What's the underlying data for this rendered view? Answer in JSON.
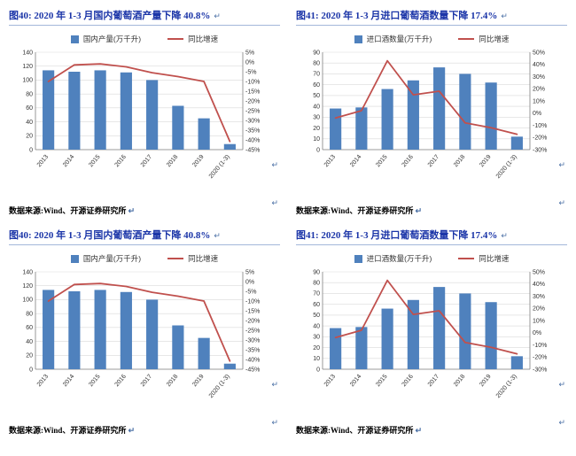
{
  "colors": {
    "bar": "#4F81BD",
    "line": "#C0504D",
    "title": "#1B35A8",
    "grid": "#D9D9D9",
    "axis": "#808080",
    "rule": "#A3B7DA",
    "mark": "#4A6FA5"
  },
  "page": {
    "mark": "↵",
    "source_note": "数据来源:Wind、开源证券研究所"
  },
  "chart_data": [
    {
      "type": "bar",
      "subtype": "bar+line-dual-axis",
      "title": "图40: 2020 年 1-3 月国内葡萄酒产量下降 40.8%",
      "categories": [
        "2013",
        "2014",
        "2015",
        "2016",
        "2017",
        "2018",
        "2019",
        "2020 (1-3)"
      ],
      "series": [
        {
          "name": "国内产量(万千升)",
          "type": "bar",
          "axis": "left",
          "values": [
            114,
            112,
            114,
            111,
            100,
            63,
            45,
            8
          ]
        },
        {
          "name": "同比增速",
          "type": "line",
          "axis": "right",
          "values": [
            -10,
            -1.5,
            -1,
            -2.5,
            -5.5,
            -7.5,
            -10,
            -40.8
          ]
        }
      ],
      "left_axis": {
        "min": 0,
        "max": 140,
        "ticks": [
          "140",
          "120",
          "100",
          "80",
          "60",
          "40",
          "20",
          "0"
        ]
      },
      "right_axis": {
        "min": -45,
        "max": 5,
        "ticks": [
          "5%",
          "0%",
          "-5%",
          "-10%",
          "-15%",
          "-20%",
          "-25%",
          "-30%",
          "-35%",
          "-40%",
          "-45%"
        ]
      },
      "legend_position": "top",
      "grid": true
    },
    {
      "type": "bar",
      "subtype": "bar+line-dual-axis",
      "title": "图41: 2020 年 1-3 月进口葡萄酒数量下降 17.4%",
      "categories": [
        "2013",
        "2014",
        "2015",
        "2016",
        "2017",
        "2018",
        "2019",
        "2020 (1-3)"
      ],
      "series": [
        {
          "name": "进口酒数量(万千升)",
          "type": "bar",
          "axis": "left",
          "values": [
            38,
            39,
            56,
            64,
            76,
            70,
            62,
            12
          ]
        },
        {
          "name": "同比增速",
          "type": "line",
          "axis": "right",
          "values": [
            -4,
            2,
            43,
            15,
            18,
            -8,
            -12,
            -17.4
          ]
        }
      ],
      "left_axis": {
        "min": 0,
        "max": 90,
        "ticks": [
          "90",
          "80",
          "70",
          "60",
          "50",
          "40",
          "30",
          "20",
          "10",
          "0"
        ]
      },
      "right_axis": {
        "min": -30,
        "max": 50,
        "ticks": [
          "50%",
          "40%",
          "30%",
          "20%",
          "10%",
          "0%",
          "-10%",
          "-20%",
          "-30%"
        ]
      },
      "legend_position": "top",
      "grid": true
    }
  ]
}
